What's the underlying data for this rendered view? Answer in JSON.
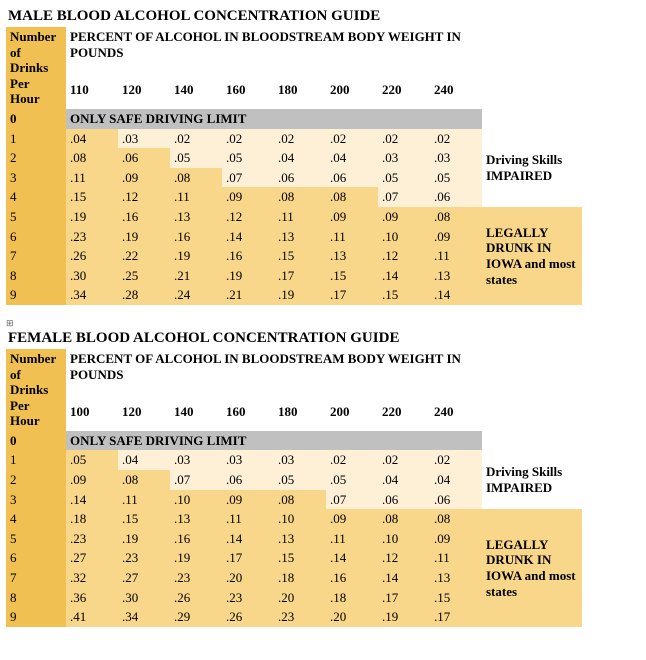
{
  "colors": {
    "header_bg": "#f0c052",
    "shade_dark": "#f8d68a",
    "shade_light": "#fdf0d6",
    "safe_bg": "#c0c0c0",
    "text": "#000000",
    "background": "#ffffff"
  },
  "col_widths": {
    "drinks": 60,
    "weight": 52,
    "note": 100
  },
  "male": {
    "title": "MALE BLOOD ALCOHOL CONCENTRATION GUIDE",
    "drinks_header": "Number of Drinks Per Hour",
    "percent_header": "PERCENT OF ALCOHOL IN BLOODSTREAM BODY WEIGHT IN POUNDS",
    "weights": [
      "110",
      "120",
      "140",
      "160",
      "180",
      "200",
      "220",
      "240"
    ],
    "safe_label": "0",
    "safe_text": "ONLY SAFE DRIVING LIMIT",
    "rows": [
      {
        "d": "1",
        "v": [
          ".04",
          ".03",
          ".02",
          ".02",
          ".02",
          ".02",
          ".02",
          ".02"
        ],
        "sh": [
          "d",
          "l",
          "l",
          "l",
          "l",
          "l",
          "l",
          "l"
        ]
      },
      {
        "d": "2",
        "v": [
          ".08",
          ".06",
          ".05",
          ".05",
          ".04",
          ".04",
          ".03",
          ".03"
        ],
        "sh": [
          "d",
          "d",
          "l",
          "l",
          "l",
          "l",
          "l",
          "l"
        ]
      },
      {
        "d": "3",
        "v": [
          ".11",
          ".09",
          ".08",
          ".07",
          ".06",
          ".06",
          ".05",
          ".05"
        ],
        "sh": [
          "d",
          "d",
          "d",
          "l",
          "l",
          "l",
          "l",
          "l"
        ]
      },
      {
        "d": "4",
        "v": [
          ".15",
          ".12",
          ".11",
          ".09",
          ".08",
          ".08",
          ".07",
          ".06"
        ],
        "sh": [
          "d",
          "d",
          "d",
          "d",
          "d",
          "d",
          "l",
          "l"
        ]
      },
      {
        "d": "5",
        "v": [
          ".19",
          ".16",
          ".13",
          ".12",
          ".11",
          ".09",
          ".09",
          ".08"
        ],
        "sh": [
          "d",
          "d",
          "d",
          "d",
          "d",
          "d",
          "d",
          "d"
        ]
      },
      {
        "d": "6",
        "v": [
          ".23",
          ".19",
          ".16",
          ".14",
          ".13",
          ".11",
          ".10",
          ".09"
        ],
        "sh": [
          "d",
          "d",
          "d",
          "d",
          "d",
          "d",
          "d",
          "d"
        ]
      },
      {
        "d": "7",
        "v": [
          ".26",
          ".22",
          ".19",
          ".16",
          ".15",
          ".13",
          ".12",
          ".11"
        ],
        "sh": [
          "d",
          "d",
          "d",
          "d",
          "d",
          "d",
          "d",
          "d"
        ]
      },
      {
        "d": "8",
        "v": [
          ".30",
          ".25",
          ".21",
          ".19",
          ".17",
          ".15",
          ".14",
          ".13"
        ],
        "sh": [
          "d",
          "d",
          "d",
          "d",
          "d",
          "d",
          "d",
          "d"
        ]
      },
      {
        "d": "9",
        "v": [
          ".34",
          ".28",
          ".24",
          ".21",
          ".19",
          ".17",
          ".15",
          ".14"
        ],
        "sh": [
          "d",
          "d",
          "d",
          "d",
          "d",
          "d",
          "d",
          "d"
        ]
      }
    ],
    "note1": {
      "text": "Driving Skills IMPAIRED",
      "start": 1,
      "span": 4
    },
    "note2": {
      "text": "LEGALLY DRUNK IN IOWA and most states",
      "start": 5,
      "span": 5,
      "shaded": true
    }
  },
  "female": {
    "title": "FEMALE BLOOD ALCOHOL CONCENTRATION GUIDE",
    "drinks_header": "Number of Drinks Per Hour",
    "percent_header": "PERCENT OF ALCOHOL IN BLOODSTREAM BODY WEIGHT IN POUNDS",
    "weights": [
      "100",
      "120",
      "140",
      "160",
      "180",
      "200",
      "220",
      "240"
    ],
    "safe_label": "0",
    "safe_text": "ONLY SAFE DRIVING LIMIT",
    "rows": [
      {
        "d": "1",
        "v": [
          ".05",
          ".04",
          ".03",
          ".03",
          ".03",
          ".02",
          ".02",
          ".02"
        ],
        "sh": [
          "d",
          "l",
          "l",
          "l",
          "l",
          "l",
          "l",
          "l"
        ]
      },
      {
        "d": "2",
        "v": [
          ".09",
          ".08",
          ".07",
          ".06",
          ".05",
          ".05",
          ".04",
          ".04"
        ],
        "sh": [
          "d",
          "d",
          "l",
          "l",
          "l",
          "l",
          "l",
          "l"
        ]
      },
      {
        "d": "3",
        "v": [
          ".14",
          ".11",
          ".10",
          ".09",
          ".08",
          ".07",
          ".06",
          ".06"
        ],
        "sh": [
          "d",
          "d",
          "d",
          "d",
          "d",
          "l",
          "l",
          "l"
        ]
      },
      {
        "d": "4",
        "v": [
          ".18",
          ".15",
          ".13",
          ".11",
          ".10",
          ".09",
          ".08",
          ".08"
        ],
        "sh": [
          "d",
          "d",
          "d",
          "d",
          "d",
          "d",
          "d",
          "d"
        ]
      },
      {
        "d": "5",
        "v": [
          ".23",
          ".19",
          ".16",
          ".14",
          ".13",
          ".11",
          ".10",
          ".09"
        ],
        "sh": [
          "d",
          "d",
          "d",
          "d",
          "d",
          "d",
          "d",
          "d"
        ]
      },
      {
        "d": "6",
        "v": [
          ".27",
          ".23",
          ".19",
          ".17",
          ".15",
          ".14",
          ".12",
          ".11"
        ],
        "sh": [
          "d",
          "d",
          "d",
          "d",
          "d",
          "d",
          "d",
          "d"
        ]
      },
      {
        "d": "7",
        "v": [
          ".32",
          ".27",
          ".23",
          ".20",
          ".18",
          ".16",
          ".14",
          ".13"
        ],
        "sh": [
          "d",
          "d",
          "d",
          "d",
          "d",
          "d",
          "d",
          "d"
        ]
      },
      {
        "d": "8",
        "v": [
          ".36",
          ".30",
          ".26",
          ".23",
          ".20",
          ".18",
          ".17",
          ".15"
        ],
        "sh": [
          "d",
          "d",
          "d",
          "d",
          "d",
          "d",
          "d",
          "d"
        ]
      },
      {
        "d": "9",
        "v": [
          ".41",
          ".34",
          ".29",
          ".26",
          ".23",
          ".20",
          ".19",
          ".17"
        ],
        "sh": [
          "d",
          "d",
          "d",
          "d",
          "d",
          "d",
          "d",
          "d"
        ]
      }
    ],
    "note1": {
      "text": "Driving Skills IMPAIRED",
      "start": 1,
      "span": 3
    },
    "note2": {
      "text": "LEGALLY DRUNK IN IOWA and most states",
      "start": 4,
      "span": 6,
      "shaded": true
    }
  }
}
